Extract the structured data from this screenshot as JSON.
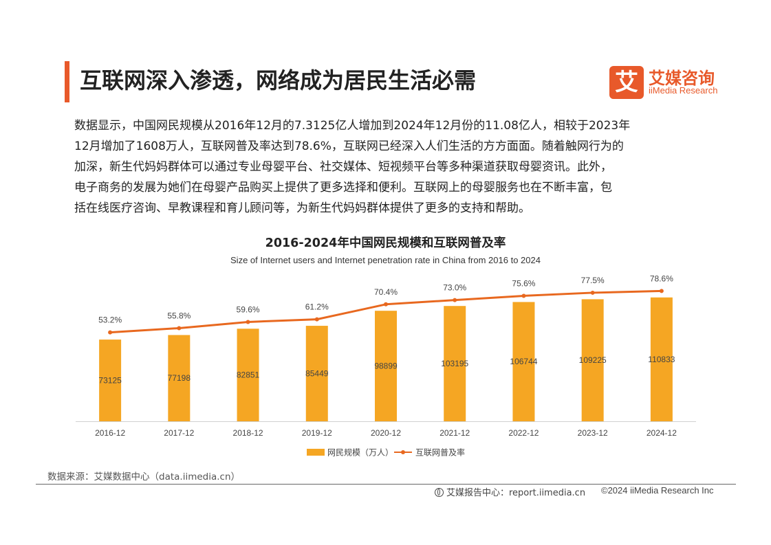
{
  "header": {
    "title": "互联网深入渗透，网络成为居民生活必需",
    "logo_mark": "艾",
    "logo_cn": "艾媒咨询",
    "logo_en": "iiMedia Research"
  },
  "paragraph": [
    "数据显示，中国网民规模从2016年12月的7.3125亿人增加到2024年12月份的11.08亿人，相较于2023年",
    "12月增加了1608万人，互联网普及率达到78.6%，互联网已经深入人们生活的方方面面。随着触网行为的",
    "加深，新生代妈妈群体可以通过专业母婴平台、社交媒体、短视频平台等多种渠道获取母婴资讯。此外，",
    "电子商务的发展为她们在母婴产品购买上提供了更多选择和便利。互联网上的母婴服务也在不断丰富，包",
    "括在线医疗咨询、早教课程和育儿顾问等，为新生代妈妈群体提供了更多的支持和帮助。"
  ],
  "chart_data": {
    "type": "bar",
    "title": "2016-2024年中国网民规模和互联网普及率",
    "subtitle": "Size of Internet users and Internet penetration rate in China from 2016 to 2024",
    "categories": [
      "2016-12",
      "2017-12",
      "2018-12",
      "2019-12",
      "2020-12",
      "2021-12",
      "2022-12",
      "2023-12",
      "2024-12"
    ],
    "series": [
      {
        "name": "网民规模（万人）",
        "type": "bar",
        "color": "#f5a623",
        "values": [
          73125,
          77198,
          82851,
          85449,
          98899,
          103195,
          106744,
          109225,
          110833
        ],
        "labels": [
          "73125",
          "77198",
          "82851",
          "85449",
          "98899",
          "103195",
          "106744",
          "109225",
          "110833"
        ]
      },
      {
        "name": "互联网普及率",
        "type": "line",
        "color": "#e8681f",
        "values": [
          53.2,
          55.8,
          59.6,
          61.2,
          70.4,
          73.0,
          75.6,
          77.5,
          78.6
        ],
        "labels": [
          "53.2%",
          "55.8%",
          "59.6%",
          "61.2%",
          "70.4%",
          "73.0%",
          "75.6%",
          "77.5%",
          "78.6%"
        ]
      }
    ],
    "legend_position": "bottom",
    "grid": false
  },
  "source": "数据来源：艾媒数据中心（data.iimedia.cn）",
  "footer": {
    "report": "艾媒报告中心：report.iimedia.cn",
    "copyright": "©2024  iiMedia Research  Inc"
  },
  "colors": {
    "accent": "#e8592a",
    "bar": "#f5a623",
    "line": "#e8681f"
  }
}
